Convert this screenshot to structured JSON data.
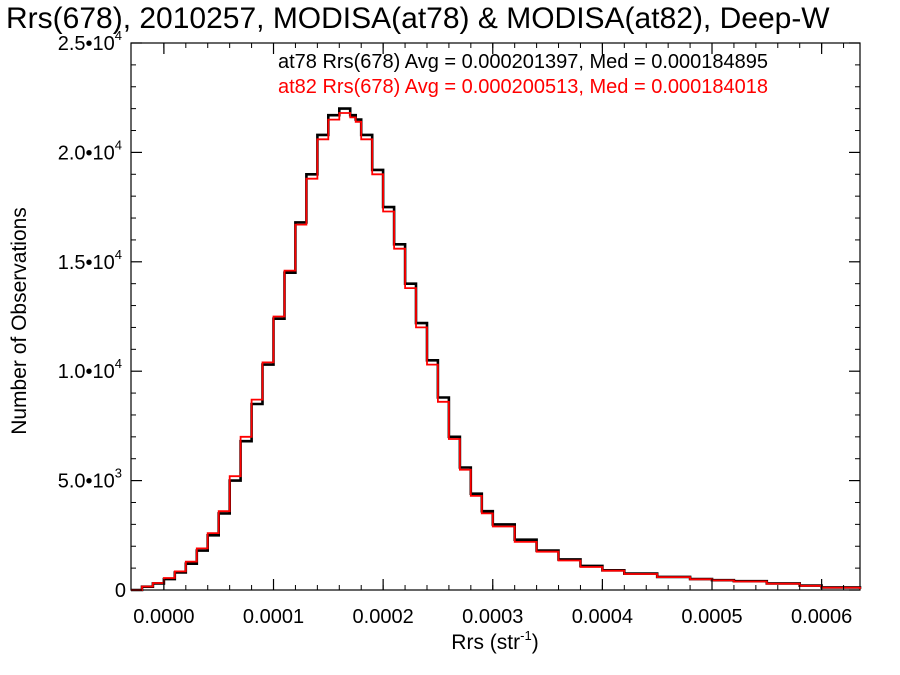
{
  "chart_data": {
    "type": "line",
    "title": "Rrs(678), 2010257, MODISA(at78) & MODISA(at82), Deep-W",
    "xlabel": "Rrs (str",
    "xlabel_sup": "-1",
    "xlabel_close": ")",
    "ylabel": "Number of Observations",
    "xlim": [
      -3e-05,
      0.000635
    ],
    "ylim": [
      0,
      25000
    ],
    "x_ticks": [
      0.0,
      0.0001,
      0.0002,
      0.0003,
      0.0004,
      0.0005,
      0.0006
    ],
    "x_tick_labels": [
      "0.0000",
      "0.0001",
      "0.0002",
      "0.0003",
      "0.0004",
      "0.0005",
      "0.0006"
    ],
    "y_ticks": [
      0,
      5000,
      10000,
      15000,
      20000,
      25000
    ],
    "y_tick_labels": [
      {
        "mantissa": "0",
        "exp": ""
      },
      {
        "mantissa": "5.0•10",
        "exp": "3"
      },
      {
        "mantissa": "1.0•10",
        "exp": "4"
      },
      {
        "mantissa": "1.5•10",
        "exp": "4"
      },
      {
        "mantissa": "2.0•10",
        "exp": "4"
      },
      {
        "mantissa": "2.5•10",
        "exp": "4"
      }
    ],
    "annotations": [
      {
        "text": "at78 Rrs(678) Avg = 0.000201397, Med = 0.000184895",
        "color": "#000000"
      },
      {
        "text": "at82 Rrs(678) Avg = 0.000200513, Med = 0.000184018",
        "color": "#ff0000"
      }
    ],
    "series": [
      {
        "color": "#000000",
        "x": [
          -3e-05,
          -2e-05,
          -1e-05,
          0.0,
          1e-05,
          2e-05,
          3e-05,
          4e-05,
          5e-05,
          6e-05,
          7e-05,
          8e-05,
          9e-05,
          0.0001,
          0.00011,
          0.00012,
          0.00013,
          0.00014,
          0.00015,
          0.00016,
          0.00017,
          0.000175,
          0.00018,
          0.00019,
          0.0002,
          0.00021,
          0.00022,
          0.00023,
          0.00024,
          0.00025,
          0.00026,
          0.00027,
          0.00028,
          0.00029,
          0.0003,
          0.00032,
          0.00034,
          0.00036,
          0.00038,
          0.0004,
          0.00042,
          0.00045,
          0.00048,
          0.0005,
          0.00052,
          0.00055,
          0.00058,
          0.0006,
          0.000635
        ],
        "y": [
          0,
          150,
          300,
          500,
          800,
          1200,
          1800,
          2500,
          3500,
          5000,
          6800,
          8500,
          10300,
          12400,
          14500,
          16800,
          19000,
          20800,
          21700,
          22000,
          21700,
          21500,
          20800,
          19200,
          17500,
          15800,
          14000,
          12200,
          10500,
          8800,
          7000,
          5600,
          4400,
          3600,
          3000,
          2300,
          1800,
          1400,
          1100,
          900,
          750,
          600,
          500,
          450,
          400,
          300,
          200,
          120,
          50
        ]
      },
      {
        "color": "#ff0000",
        "x": [
          -3e-05,
          -2e-05,
          -1e-05,
          0.0,
          1e-05,
          2e-05,
          3e-05,
          4e-05,
          5e-05,
          6e-05,
          7e-05,
          8e-05,
          9e-05,
          0.0001,
          0.00011,
          0.00012,
          0.00013,
          0.00014,
          0.00015,
          0.00016,
          0.00017,
          0.000175,
          0.00018,
          0.00019,
          0.0002,
          0.00021,
          0.00022,
          0.00023,
          0.00024,
          0.00025,
          0.00026,
          0.00027,
          0.00028,
          0.00029,
          0.0003,
          0.00032,
          0.00034,
          0.00036,
          0.00038,
          0.0004,
          0.00042,
          0.00045,
          0.00048,
          0.0005,
          0.00052,
          0.00055,
          0.00058,
          0.0006,
          0.000635
        ],
        "y": [
          0,
          160,
          320,
          550,
          850,
          1300,
          1900,
          2600,
          3600,
          5200,
          7000,
          8700,
          10400,
          12500,
          14600,
          16700,
          18800,
          20600,
          21500,
          21800,
          21600,
          21400,
          20600,
          19000,
          17300,
          15600,
          13800,
          12000,
          10300,
          8600,
          6900,
          5500,
          4300,
          3500,
          2900,
          2200,
          1750,
          1350,
          1050,
          880,
          730,
          590,
          490,
          440,
          390,
          290,
          190,
          110,
          40
        ]
      }
    ]
  }
}
